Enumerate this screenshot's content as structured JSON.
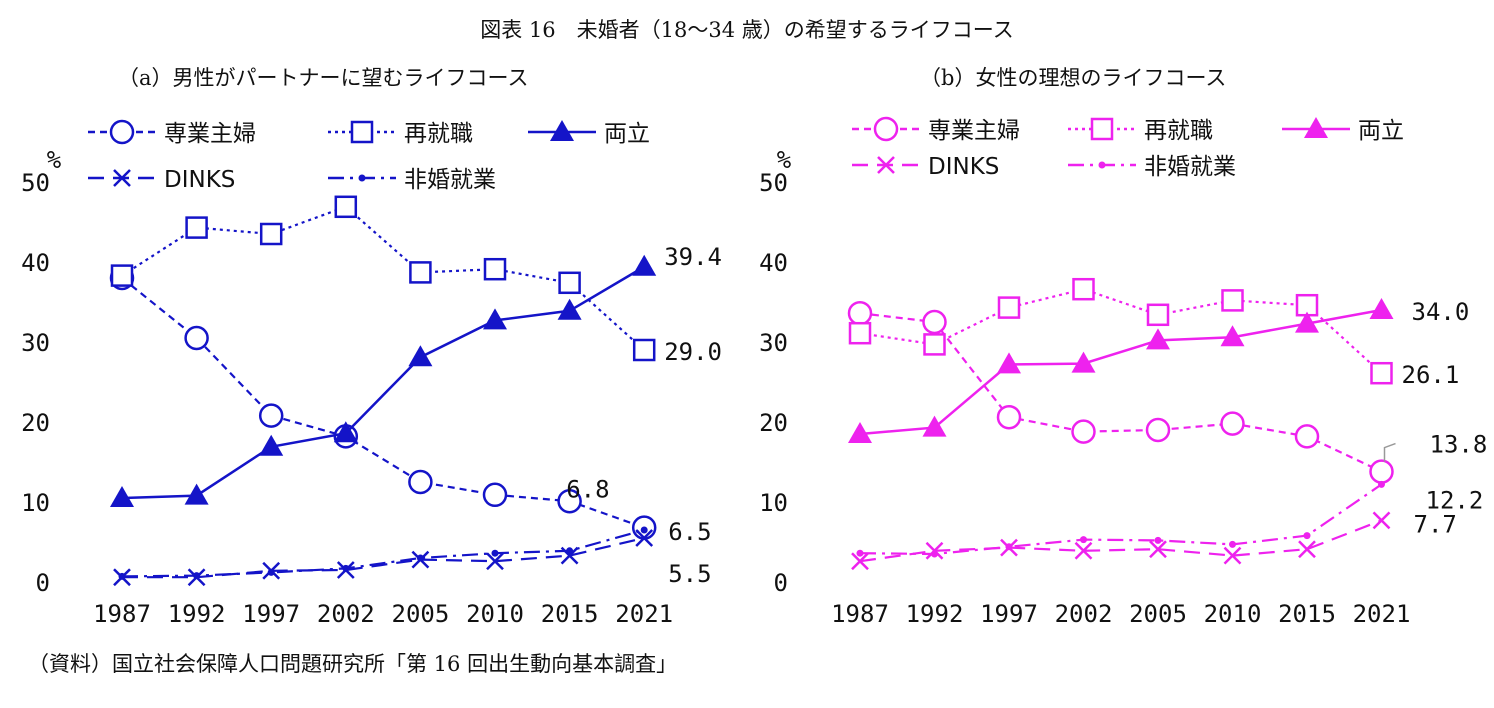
{
  "page": {
    "title": "図表 16　未婚者（18～34 歳）の希望するライフコース",
    "source": "（資料）国立社会保障人口問題研究所「第 16 回出生動向基本調査」"
  },
  "chart_data": [
    {
      "type": "line",
      "title": "（a）男性がパートナーに望むライフコース",
      "color": "#1414c8",
      "unit_label": "%",
      "x": [
        "1987",
        "1992",
        "1997",
        "2002",
        "2005",
        "2010",
        "2015",
        "2021"
      ],
      "ylim": [
        0,
        50
      ],
      "yticks": [
        "0",
        "10",
        "20",
        "30",
        "40",
        "50"
      ],
      "legend_placement": "top-left",
      "grid": false,
      "series": [
        {
          "name": "専業主婦",
          "style": "dashed",
          "marker": "circle",
          "values": [
            38,
            30.5,
            20.8,
            18.2,
            12.5,
            10.9,
            10.1,
            6.8
          ],
          "end_label": "6.8"
        },
        {
          "name": "再就職",
          "style": "dotted",
          "marker": "square",
          "values": [
            38.3,
            44.3,
            43.5,
            46.9,
            38.7,
            39.1,
            37.4,
            29.0
          ],
          "end_label": "29.0"
        },
        {
          "name": "両立",
          "style": "solid",
          "marker": "triangle",
          "values": [
            10.5,
            10.8,
            16.9,
            18.6,
            28.1,
            32.7,
            33.9,
            39.4
          ],
          "end_label": "39.4"
        },
        {
          "name": "DINKS",
          "style": "longdash",
          "marker": "cross",
          "values": [
            0.6,
            0.6,
            1.4,
            1.5,
            2.8,
            2.6,
            3.3,
            5.5
          ],
          "end_label": "5.5"
        },
        {
          "name": "非婚就業",
          "style": "dashdot",
          "marker": "dot",
          "values": [
            0.7,
            0.8,
            1.2,
            1.7,
            3.0,
            3.6,
            3.9,
            6.5
          ],
          "end_label": "6.5"
        }
      ]
    },
    {
      "type": "line",
      "title": "（b）女性の理想のライフコース",
      "color": "#ee22ee",
      "unit_label": "%",
      "x": [
        "1987",
        "1992",
        "1997",
        "2002",
        "2005",
        "2010",
        "2015",
        "2021"
      ],
      "ylim": [
        0,
        50
      ],
      "yticks": [
        "0",
        "10",
        "20",
        "30",
        "40",
        "50"
      ],
      "legend_placement": "top-left",
      "grid": false,
      "series": [
        {
          "name": "専業主婦",
          "style": "dashed",
          "marker": "circle",
          "values": [
            33.6,
            32.5,
            20.6,
            18.8,
            19.0,
            19.8,
            18.2,
            13.8
          ],
          "end_label": "13.8"
        },
        {
          "name": "再就職",
          "style": "dotted",
          "marker": "square",
          "values": [
            31.1,
            29.7,
            34.3,
            36.6,
            33.4,
            35.2,
            34.6,
            26.1
          ],
          "end_label": "26.1"
        },
        {
          "name": "両立",
          "style": "solid",
          "marker": "triangle",
          "values": [
            18.5,
            19.3,
            27.2,
            27.3,
            30.2,
            30.6,
            32.3,
            34.0
          ],
          "end_label": "34.0"
        },
        {
          "name": "DINKS",
          "style": "longdash",
          "marker": "cross",
          "values": [
            2.6,
            3.9,
            4.3,
            3.9,
            4.1,
            3.3,
            4.1,
            7.7
          ],
          "end_label": "7.7"
        },
        {
          "name": "非婚就業",
          "style": "dashdot",
          "marker": "dot",
          "values": [
            3.6,
            3.5,
            4.4,
            5.3,
            5.2,
            4.7,
            5.8,
            12.2
          ],
          "end_label": "12.2"
        }
      ]
    }
  ]
}
